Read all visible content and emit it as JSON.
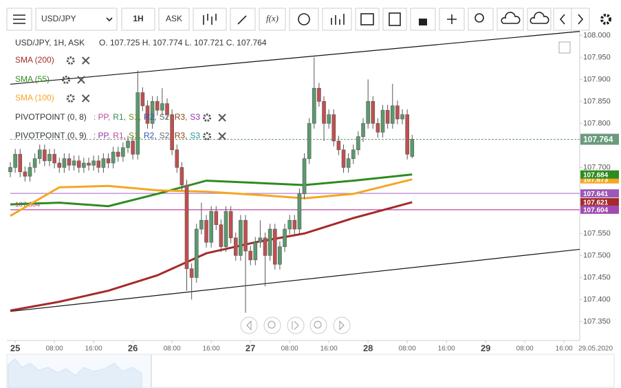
{
  "toolbar": {
    "symbol": "USD/JPY",
    "interval": "1H",
    "side": "ASK",
    "fx": "f(x)"
  },
  "legend": {
    "header": "USD/JPY, 1H, ASK",
    "ohlc_text": "O. 107.725 H. 107.774 L. 107.721 C. 107.764",
    "indicators": [
      {
        "text": "SMA (200)",
        "color": "#a52a2a"
      },
      {
        "text": "SMA (55)",
        "color": "#2e8b1e"
      },
      {
        "text": "SMA (100)",
        "color": "#f5a623"
      },
      {
        "text": "PIVOTPOINT (0, 8)",
        "color": "#333"
      },
      {
        "text": "PIVOTPOINT (0, 9)",
        "color": "#333"
      }
    ],
    "pivot_items_8": [
      {
        "text": ": PP,",
        "color": "#c0479a"
      },
      {
        "text": "R1,",
        "color": "#2e8b57"
      },
      {
        "text": "S1,",
        "color": "#6b8e23"
      },
      {
        "text": "R2,",
        "color": "#3355aa"
      },
      {
        "text": "S2,",
        "color": "#666666"
      },
      {
        "text": "R3,",
        "color": "#8b4513"
      },
      {
        "text": "S3",
        "color": "#9b30b0"
      }
    ],
    "pivot_items_9": [
      {
        "text": ": PP,",
        "color": "#9b30b0"
      },
      {
        "text": "R1,",
        "color": "#c0479a"
      },
      {
        "text": "S1,",
        "color": "#6b8e23"
      },
      {
        "text": "R2,",
        "color": "#3355aa"
      },
      {
        "text": "S2,",
        "color": "#666666"
      },
      {
        "text": "R3,",
        "color": "#8b4513"
      },
      {
        "text": "S3",
        "color": "#1a9aa0"
      }
    ]
  },
  "chart_data": {
    "type": "candlestick",
    "up_color": "#5a9a6e",
    "down_color": "#c0504d",
    "x": [
      -1,
      0,
      1,
      2,
      3,
      4,
      5,
      6,
      7,
      8,
      9,
      10,
      11,
      12,
      13,
      14,
      15,
      16,
      17,
      18,
      19,
      20,
      21,
      22,
      23,
      24,
      25,
      26,
      27,
      28,
      29,
      30,
      31,
      32,
      33,
      34,
      35,
      36,
      37,
      38,
      39,
      40,
      41,
      42,
      43,
      44,
      45,
      46,
      47,
      48,
      49,
      50,
      51,
      52,
      53,
      54,
      55,
      56,
      57,
      58,
      59,
      60,
      61,
      62,
      63,
      64,
      65,
      66,
      67,
      68,
      69,
      70,
      71,
      72,
      73,
      74,
      75,
      76,
      77,
      78,
      79,
      80,
      81
    ],
    "ohlc": [
      [
        107.69,
        107.712,
        107.678,
        107.7
      ],
      [
        107.7,
        107.742,
        107.688,
        107.73
      ],
      [
        107.73,
        107.742,
        107.678,
        107.69
      ],
      [
        107.69,
        107.702,
        107.668,
        107.68
      ],
      [
        107.68,
        107.712,
        107.668,
        107.7
      ],
      [
        107.7,
        107.732,
        107.688,
        107.72
      ],
      [
        107.72,
        107.752,
        107.708,
        107.74
      ],
      [
        107.74,
        107.752,
        107.703,
        107.715
      ],
      [
        107.715,
        107.742,
        107.703,
        107.73
      ],
      [
        107.73,
        107.742,
        107.698,
        107.71
      ],
      [
        107.71,
        107.722,
        107.688,
        107.7
      ],
      [
        107.7,
        107.732,
        107.688,
        107.72
      ],
      [
        107.72,
        107.732,
        107.693,
        107.705
      ],
      [
        107.705,
        107.727,
        107.693,
        107.715
      ],
      [
        107.715,
        107.727,
        107.688,
        107.7
      ],
      [
        107.7,
        107.722,
        107.688,
        107.71
      ],
      [
        107.71,
        107.722,
        107.693,
        107.705
      ],
      [
        107.705,
        107.727,
        107.693,
        107.715
      ],
      [
        107.715,
        107.727,
        107.688,
        107.7
      ],
      [
        107.7,
        107.732,
        107.688,
        107.72
      ],
      [
        107.72,
        107.732,
        107.698,
        107.71
      ],
      [
        107.71,
        107.747,
        107.698,
        107.735
      ],
      [
        107.735,
        107.747,
        107.713,
        107.725
      ],
      [
        107.725,
        107.757,
        107.713,
        107.745
      ],
      [
        107.745,
        107.772,
        107.733,
        107.76
      ],
      [
        107.76,
        107.772,
        107.718,
        107.73
      ],
      [
        107.73,
        107.92,
        107.718,
        107.87
      ],
      [
        107.87,
        107.882,
        107.828,
        107.84
      ],
      [
        107.84,
        107.852,
        107.788,
        107.8
      ],
      [
        107.8,
        107.862,
        107.788,
        107.85
      ],
      [
        107.85,
        107.862,
        107.818,
        107.83
      ],
      [
        107.83,
        107.88,
        107.818,
        107.845
      ],
      [
        107.845,
        107.857,
        107.808,
        107.82
      ],
      [
        107.82,
        107.832,
        107.728,
        107.74
      ],
      [
        107.74,
        107.752,
        107.688,
        107.7
      ],
      [
        107.7,
        107.712,
        107.648,
        107.66
      ],
      [
        107.66,
        107.672,
        107.42,
        107.47
      ],
      [
        107.47,
        107.482,
        107.4,
        107.45
      ],
      [
        107.45,
        107.572,
        107.438,
        107.56
      ],
      [
        107.56,
        107.62,
        107.548,
        107.58
      ],
      [
        107.58,
        107.592,
        107.518,
        107.53
      ],
      [
        107.53,
        107.612,
        107.518,
        107.6
      ],
      [
        107.6,
        107.612,
        107.558,
        107.57
      ],
      [
        107.57,
        107.582,
        107.508,
        107.52
      ],
      [
        107.52,
        107.612,
        107.508,
        107.6
      ],
      [
        107.6,
        107.612,
        107.528,
        107.54
      ],
      [
        107.54,
        107.552,
        107.488,
        107.5
      ],
      [
        107.5,
        107.592,
        107.488,
        107.58
      ],
      [
        107.58,
        107.592,
        107.37,
        107.51
      ],
      [
        107.51,
        107.522,
        107.478,
        107.49
      ],
      [
        107.49,
        107.542,
        107.478,
        107.53
      ],
      [
        107.53,
        107.58,
        107.518,
        107.54
      ],
      [
        107.54,
        107.552,
        107.43,
        107.5
      ],
      [
        107.5,
        107.572,
        107.488,
        107.56
      ],
      [
        107.56,
        107.572,
        107.468,
        107.48
      ],
      [
        107.48,
        107.532,
        107.468,
        107.52
      ],
      [
        107.52,
        107.572,
        107.508,
        107.56
      ],
      [
        107.56,
        107.592,
        107.548,
        107.58
      ],
      [
        107.58,
        107.592,
        107.548,
        107.56
      ],
      [
        107.56,
        107.652,
        107.548,
        107.64
      ],
      [
        107.64,
        107.732,
        107.628,
        107.72
      ],
      [
        107.72,
        107.812,
        107.708,
        107.8
      ],
      [
        107.8,
        107.95,
        107.788,
        107.88
      ],
      [
        107.88,
        107.892,
        107.838,
        107.85
      ],
      [
        107.85,
        107.862,
        107.76,
        107.8
      ],
      [
        107.8,
        107.832,
        107.788,
        107.82
      ],
      [
        107.82,
        107.832,
        107.748,
        107.76
      ],
      [
        107.76,
        107.772,
        107.728,
        107.74
      ],
      [
        107.74,
        107.752,
        107.688,
        107.7
      ],
      [
        107.7,
        107.732,
        107.688,
        107.72
      ],
      [
        107.72,
        107.752,
        107.708,
        107.74
      ],
      [
        107.74,
        107.782,
        107.728,
        107.77
      ],
      [
        107.77,
        107.812,
        107.758,
        107.8
      ],
      [
        107.8,
        107.9,
        107.788,
        107.85
      ],
      [
        107.85,
        107.862,
        107.788,
        107.8
      ],
      [
        107.8,
        107.812,
        107.768,
        107.78
      ],
      [
        107.78,
        107.842,
        107.768,
        107.83
      ],
      [
        107.83,
        107.842,
        107.788,
        107.8
      ],
      [
        107.8,
        107.89,
        107.788,
        107.84
      ],
      [
        107.84,
        107.852,
        107.798,
        107.81
      ],
      [
        107.81,
        107.832,
        107.798,
        107.82
      ],
      [
        107.82,
        107.832,
        107.718,
        107.73
      ],
      [
        107.725,
        107.774,
        107.721,
        107.764
      ]
    ],
    "series": [
      {
        "name": "SMA (200)",
        "color": "#a52a2a",
        "x": [
          -1,
          9,
          19,
          29,
          39,
          49,
          59,
          69,
          81
        ],
        "values": [
          107.375,
          107.395,
          107.42,
          107.455,
          107.505,
          107.53,
          107.55,
          107.585,
          107.621
        ]
      },
      {
        "name": "SMA (55)",
        "color": "#2e8b1e",
        "x": [
          -1,
          9,
          19,
          29,
          39,
          49,
          59,
          69,
          81
        ],
        "values": [
          107.616,
          107.62,
          107.612,
          107.64,
          107.67,
          107.665,
          107.66,
          107.67,
          107.684
        ]
      },
      {
        "name": "SMA (100)",
        "color": "#f5a623",
        "x": [
          -1,
          9,
          19,
          29,
          39,
          49,
          59,
          69,
          81
        ],
        "values": [
          107.59,
          107.655,
          107.658,
          107.648,
          107.645,
          107.638,
          107.63,
          107.64,
          107.673
        ]
      }
    ],
    "trendlines": [
      {
        "x": [
          -1,
          115.2
        ],
        "values": [
          107.889,
          108.009
        ]
      },
      {
        "x": [
          -1,
          115.2
        ],
        "values": [
          107.373,
          107.514
        ]
      }
    ],
    "levels": [
      {
        "value": 107.641,
        "color": "#b580d1"
      },
      {
        "value": 107.604,
        "color": "#c0479a",
        "label": "107.604"
      }
    ],
    "last_price_line": 107.764,
    "price_tags": [
      {
        "value": 107.764,
        "color": "#6a9a7b"
      },
      {
        "value": 107.673,
        "color": "#f5a623"
      },
      {
        "value": 107.684,
        "color": "#2e8b1e"
      },
      {
        "value": 107.641,
        "color": "#9b59b6"
      },
      {
        "value": 107.621,
        "color": "#a52a2a"
      },
      {
        "value": 107.604,
        "color": "#a04bb0"
      }
    ],
    "xlim": [
      -1,
      115.2
    ],
    "ylim": [
      107.31,
      108.01
    ],
    "yticks": [
      {
        "value": 108,
        "label": "108.000"
      },
      {
        "value": 107.95,
        "label": "107.950"
      },
      {
        "value": 107.9,
        "label": "107.900"
      },
      {
        "value": 107.85,
        "label": "107.850"
      },
      {
        "value": 107.8,
        "label": "107.800"
      },
      {
        "value": 107.7,
        "label": "107.700"
      },
      {
        "value": 107.55,
        "label": "107.550"
      },
      {
        "value": 107.5,
        "label": "107.500"
      },
      {
        "value": 107.45,
        "label": "107.450"
      },
      {
        "value": 107.4,
        "label": "107.400"
      },
      {
        "value": 107.35,
        "label": "107.350"
      }
    ],
    "xticks": [
      {
        "value": 0,
        "label": "25"
      },
      {
        "value": 8,
        "label": "08:00"
      },
      {
        "value": 16,
        "label": "16:00"
      },
      {
        "value": 24,
        "label": "26"
      },
      {
        "value": 32,
        "label": "08:00"
      },
      {
        "value": 40,
        "label": "16:00"
      },
      {
        "value": 48,
        "label": "27"
      },
      {
        "value": 56,
        "label": "08:00"
      },
      {
        "value": 64,
        "label": "16:00"
      },
      {
        "value": 72,
        "label": "28"
      },
      {
        "value": 80,
        "label": "08:00"
      },
      {
        "value": 88,
        "label": "16:00"
      },
      {
        "value": 96,
        "label": "29"
      },
      {
        "value": 104,
        "label": "08:00"
      },
      {
        "value": 112,
        "label": "16:00"
      }
    ],
    "date_label": "29.05.2020"
  }
}
